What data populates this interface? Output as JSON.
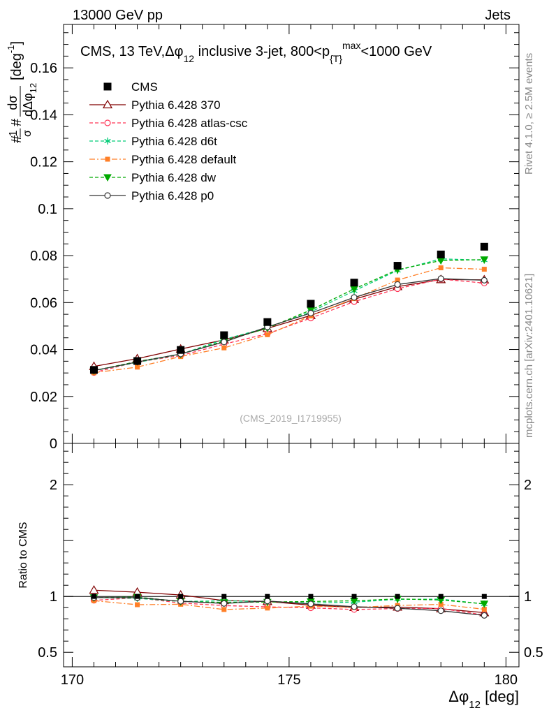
{
  "header": {
    "left": "13000 GeV pp",
    "right": "Jets"
  },
  "side_labels": {
    "rivet": "Rivet 4.1.0, ≥ 2.5M events",
    "mcplots": "mcplots.cern.ch [arXiv:2401.10621]"
  },
  "chart_data": {
    "type": "line",
    "title_parts": {
      "prefix": "CMS, 13 TeV,",
      "delta": "Δφ",
      "delta_sub": "12",
      "mid": " inclusive 3-jet, 800<p",
      "pt_sub": "{T}",
      "pt_sup": "max",
      "suffix": "<1000 GeV"
    },
    "watermark": "(CMS_2019_I1719955)",
    "ylabel_main_parts": {
      "hash_frac_num": "1",
      "hash_frac_den": "σ",
      "hash_prefix": "#",
      "hash_mid": "#",
      "frac_num": "dσ",
      "frac_den": "dΔφ",
      "frac_den_sub": "12",
      "unit": "[deg",
      "unit_sup": "-1",
      "unit_close": "]"
    },
    "ylabel_ratio": "Ratio to CMS",
    "xlabel_parts": {
      "delta": "Δφ",
      "sub": "12",
      "unit": " [deg]"
    },
    "xlim": [
      169.8,
      180.3
    ],
    "ylim_main": [
      0,
      0.1785
    ],
    "ylim_ratio": [
      0.37,
      2.37
    ],
    "x_ticks": [
      "170",
      "175",
      "180"
    ],
    "y_ticks_main": [
      "0",
      "0.02",
      "0.04",
      "0.06",
      "0.08",
      "0.1",
      "0.12",
      "0.14",
      "0.16"
    ],
    "y_ticks_ratio": [
      "0.5",
      "1",
      "2"
    ],
    "x": [
      170.5,
      171.5,
      172.5,
      173.5,
      174.5,
      175.5,
      176.5,
      177.5,
      178.5,
      179.5
    ],
    "data": {
      "name": "CMS",
      "values": [
        0.0313,
        0.0351,
        0.0398,
        0.0461,
        0.0517,
        0.0595,
        0.0685,
        0.0757,
        0.0805,
        0.0838
      ]
    },
    "series": [
      {
        "name": "Pythia 6.428 370",
        "color": "#800000",
        "dash": "solid",
        "marker": "triangle-open",
        "values": [
          0.0328,
          0.0361,
          0.0402,
          0.0441,
          0.049,
          0.0545,
          0.0614,
          0.0668,
          0.0698,
          0.0697
        ],
        "ratio": [
          1.056,
          1.038,
          1.013,
          0.963,
          0.955,
          0.922,
          0.902,
          0.905,
          0.89,
          0.855
        ]
      },
      {
        "name": "Pythia 6.428 atlas-csc",
        "color": "#ff3355",
        "dash": "dashed",
        "marker": "circle-open",
        "values": [
          0.0302,
          0.0347,
          0.0374,
          0.0423,
          0.0467,
          0.0534,
          0.0604,
          0.0659,
          0.07,
          0.0683
        ],
        "ratio": [
          0.965,
          0.988,
          0.941,
          0.918,
          0.907,
          0.898,
          0.883,
          0.892,
          0.892,
          0.834
        ]
      },
      {
        "name": "Pythia 6.428 d6t",
        "color": "#00cc77",
        "dash": "dashed",
        "marker": "star",
        "values": [
          0.031,
          0.0345,
          0.038,
          0.0443,
          0.0493,
          0.056,
          0.065,
          0.0737,
          0.0786,
          0.0781
        ],
        "ratio": [
          0.991,
          0.983,
          0.955,
          0.961,
          0.954,
          0.941,
          0.949,
          0.974,
          0.976,
          0.932
        ]
      },
      {
        "name": "Pythia 6.428 default",
        "color": "#ff7f27",
        "dash": "dashdot",
        "marker": "square",
        "values": [
          0.0301,
          0.0325,
          0.037,
          0.0407,
          0.0463,
          0.0543,
          0.0617,
          0.0696,
          0.0748,
          0.0742
        ],
        "ratio": [
          0.962,
          0.926,
          0.93,
          0.883,
          0.896,
          0.913,
          0.901,
          0.919,
          0.929,
          0.885
        ]
      },
      {
        "name": "Pythia 6.428 dw",
        "color": "#00aa00",
        "dash": "dashed",
        "marker": "triangle-down",
        "values": [
          0.031,
          0.0349,
          0.038,
          0.0436,
          0.0491,
          0.0568,
          0.0658,
          0.074,
          0.0779,
          0.0783
        ],
        "ratio": [
          0.99,
          0.994,
          0.955,
          0.946,
          0.95,
          0.955,
          0.961,
          0.978,
          0.968,
          0.934
        ]
      },
      {
        "name": "Pythia 6.428 p0",
        "color": "#333333",
        "dash": "solid",
        "marker": "circle-open",
        "values": [
          0.031,
          0.0347,
          0.0381,
          0.0432,
          0.0496,
          0.0555,
          0.0622,
          0.0677,
          0.0702,
          0.0695
        ],
        "ratio": [
          0.99,
          0.989,
          0.957,
          0.937,
          0.959,
          0.933,
          0.908,
          0.894,
          0.872,
          0.83
        ]
      }
    ]
  }
}
